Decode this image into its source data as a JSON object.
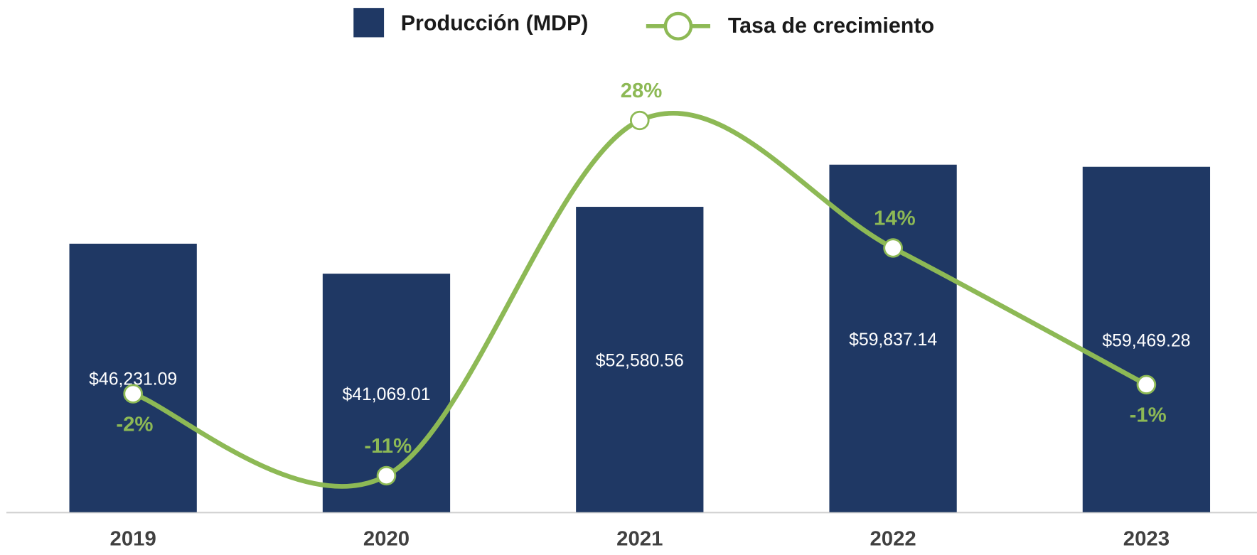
{
  "chart_data": {
    "type": "bar",
    "categories": [
      "2019",
      "2020",
      "2021",
      "2022",
      "2023"
    ],
    "series": [
      {
        "name": "Producción (MDP)",
        "type": "bar",
        "color": "#1f3864",
        "values": [
          46231.09,
          41069.01,
          52580.56,
          59837.14,
          59469.28
        ],
        "value_labels": [
          "$46,231.09",
          "$41,069.01",
          "$52,580.56",
          "$59,837.14",
          "$59,469.28"
        ]
      },
      {
        "name": "Tasa de crecimiento",
        "type": "line",
        "axis": "y2",
        "smooth": true,
        "color": "#8db955",
        "values": [
          -2,
          -11,
          28,
          14,
          -1
        ],
        "value_labels": [
          "-2%",
          "-11%",
          "28%",
          "14%",
          "-1%"
        ]
      }
    ],
    "ylim": [
      0,
      80000
    ],
    "y2lim": [
      -15,
      36
    ]
  }
}
